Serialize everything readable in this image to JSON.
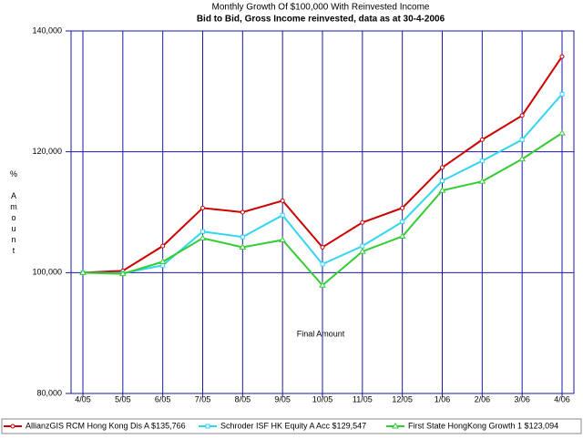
{
  "chart_data": {
    "type": "line",
    "title": "Monthly Growth Of $100,000 With Reinvested Income",
    "subtitle": "Bid to Bid, Gross Income reinvested, data as at 30-4-2006",
    "y_label": "% Amount",
    "x_label": "Final Amount",
    "categories": [
      "4/05",
      "5/05",
      "6/05",
      "7/05",
      "8/05",
      "9/05",
      "10/05",
      "11/05",
      "12/05",
      "1/06",
      "2/06",
      "3/06",
      "4/06"
    ],
    "series": [
      {
        "name": "AllianzGIS RCM Hong Kong Dis A $135,766",
        "color": "#cc0000",
        "marker": "circle",
        "values": [
          100000,
          100300,
          104400,
          110700,
          110000,
          111900,
          104200,
          108300,
          110700,
          117400,
          122000,
          126000,
          135766
        ]
      },
      {
        "name": "Schroder ISF HK Equity A Acc $129,547",
        "color": "#33d6f0",
        "marker": "square",
        "values": [
          100000,
          99900,
          101200,
          106800,
          105900,
          109500,
          101400,
          104400,
          108400,
          115200,
          118500,
          122000,
          129547
        ]
      },
      {
        "name": "First State HongKong Growth 1 $123,094",
        "color": "#33cc33",
        "marker": "triangle",
        "values": [
          100000,
          99800,
          101800,
          105700,
          104200,
          105400,
          97900,
          103500,
          106000,
          113600,
          115100,
          118800,
          123094
        ]
      }
    ],
    "ylim": [
      80000,
      140000
    ],
    "yticks": [
      {
        "value": 80000,
        "label": "80,000"
      },
      {
        "value": 100000,
        "label": "100,000"
      },
      {
        "value": 120000,
        "label": "120,000"
      },
      {
        "value": 140000,
        "label": "140,000"
      }
    ],
    "grid": true,
    "grid_color": "#1a1aa6",
    "legend": "bottom"
  }
}
